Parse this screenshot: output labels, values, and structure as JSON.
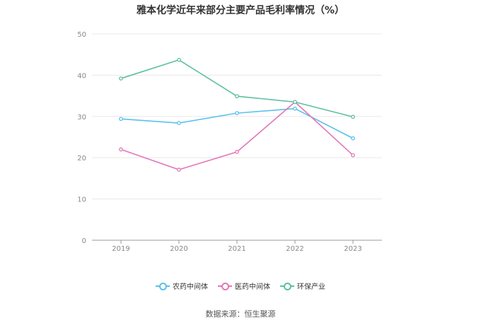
{
  "chart_data": {
    "type": "line",
    "title": "雅本化学近年来部分主要产品毛利率情况（%）",
    "categories": [
      "2019",
      "2020",
      "2021",
      "2022",
      "2023"
    ],
    "ylim": [
      0,
      50
    ],
    "yticks": [
      0,
      10,
      20,
      30,
      40,
      50
    ],
    "grid": true,
    "legend_position": "bottom",
    "series": [
      {
        "name": "农药中间体",
        "color": "#5bc0ee",
        "values": [
          29.4,
          28.4,
          30.8,
          31.9,
          24.7
        ]
      },
      {
        "name": "医药中间体",
        "color": "#e377b8",
        "values": [
          22.0,
          17.1,
          21.4,
          33.5,
          20.6
        ]
      },
      {
        "name": "环保产业",
        "color": "#5cc0a0",
        "values": [
          39.2,
          43.7,
          34.9,
          33.5,
          29.9
        ]
      }
    ]
  },
  "source_text": "数据来源：恒生聚源"
}
